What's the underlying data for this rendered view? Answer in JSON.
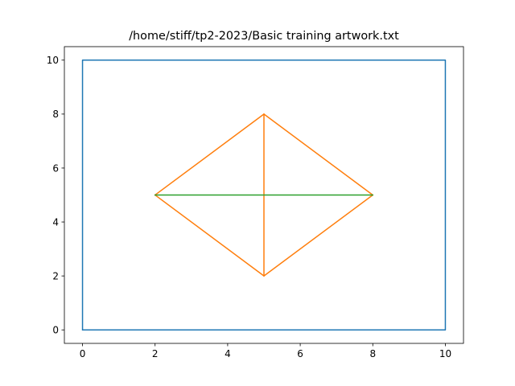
{
  "chart_data": {
    "type": "line",
    "title": "/home/stiff/tp2-2023/Basic training artwork.txt",
    "xlabel": "",
    "ylabel": "",
    "xlim": [
      -0.5,
      10.5
    ],
    "ylim": [
      -0.5,
      10.5
    ],
    "xticks": [
      0,
      2,
      4,
      6,
      8,
      10
    ],
    "yticks": [
      0,
      2,
      4,
      6,
      8,
      10
    ],
    "grid": false,
    "legend": "none",
    "series": [
      {
        "color": "#1f77b4",
        "x": [
          0,
          10,
          10,
          0,
          0
        ],
        "y": [
          0,
          0,
          10,
          10,
          0
        ]
      },
      {
        "color": "#ff7f0e",
        "x": [
          2,
          5,
          8,
          5,
          2
        ],
        "y": [
          5,
          8,
          5,
          2,
          5
        ]
      },
      {
        "color": "#ff7f0e",
        "x": [
          5,
          5
        ],
        "y": [
          2,
          8
        ]
      },
      {
        "color": "#2ca02c",
        "x": [
          2,
          8
        ],
        "y": [
          5,
          5
        ]
      }
    ]
  }
}
